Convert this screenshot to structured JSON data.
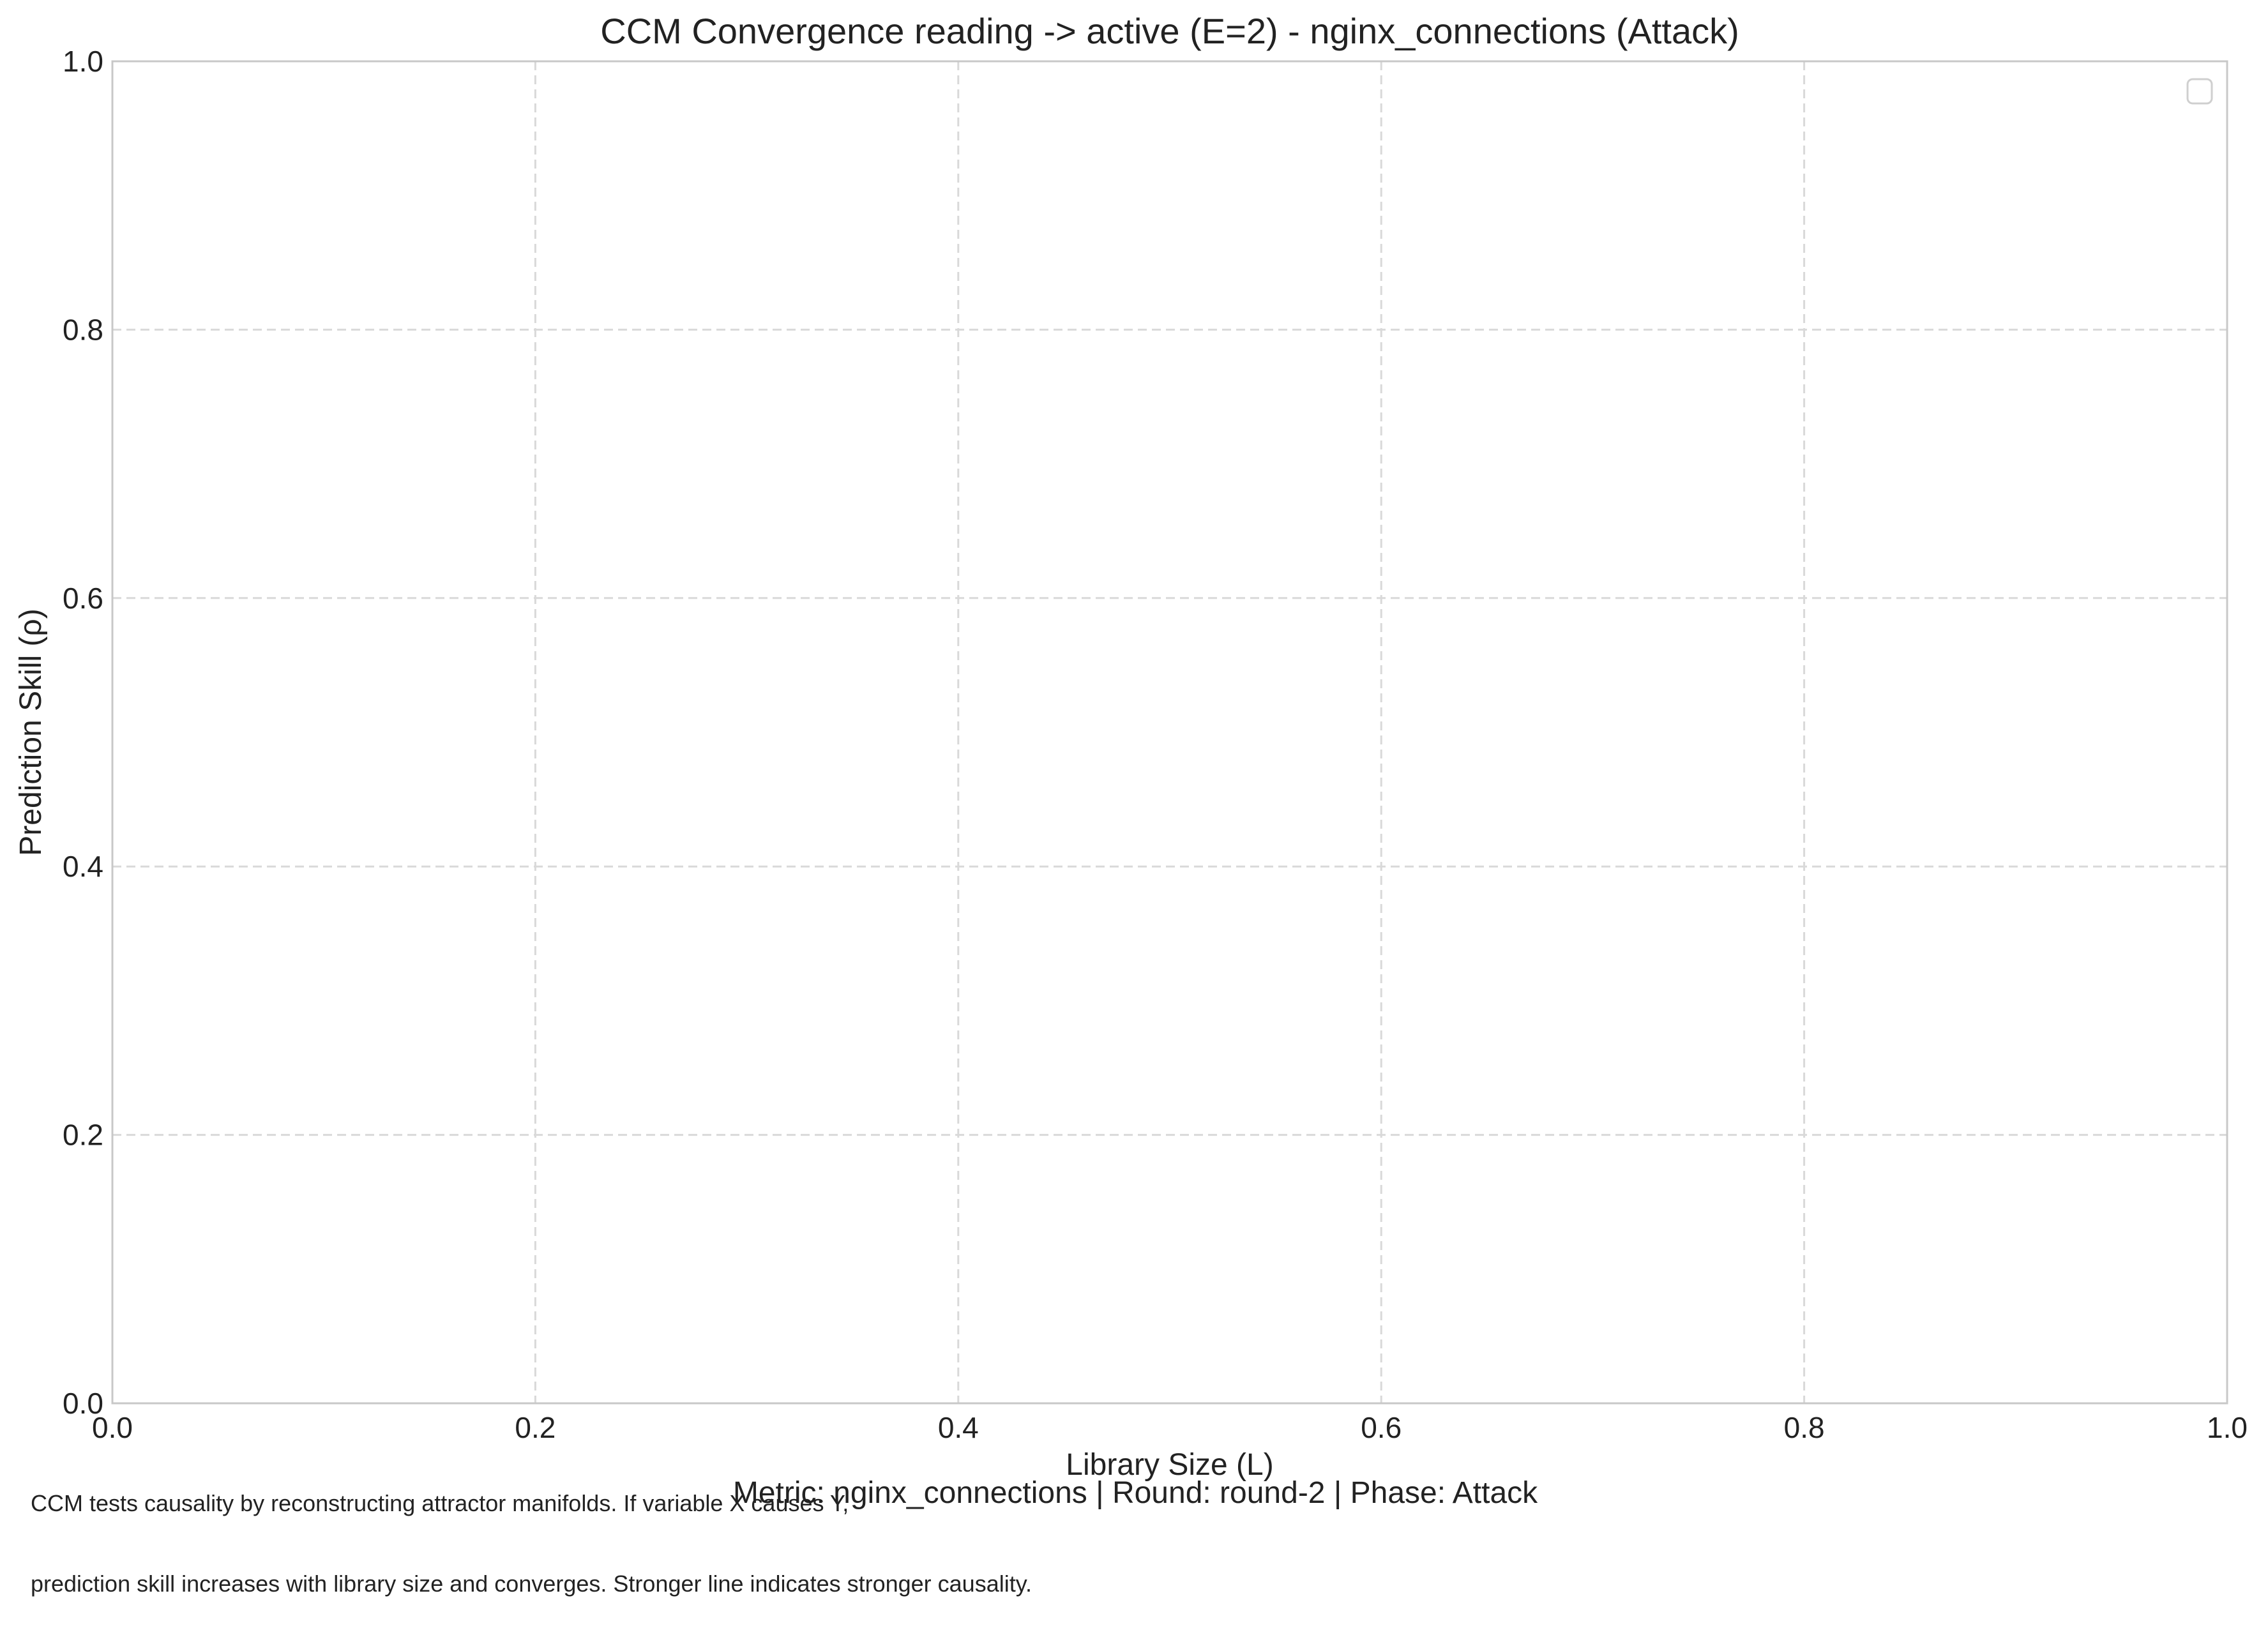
{
  "chart_data": {
    "type": "line",
    "title": "CCM Convergence reading -> active (E=2) - nginx_connections (Attack)",
    "subtitle": "Metric: nginx_connections | Round: round-2 | Phase: Attack",
    "xlabel": "Library Size (L)",
    "ylabel": "Prediction Skill (ρ)",
    "xlim": [
      0.0,
      1.0
    ],
    "ylim": [
      0.0,
      1.0
    ],
    "x_ticks": [
      "0.0",
      "0.2",
      "0.4",
      "0.6",
      "0.8",
      "1.0"
    ],
    "y_ticks": [
      "0.0",
      "0.2",
      "0.4",
      "0.6",
      "0.8",
      "1.0"
    ],
    "grid": true,
    "legend_placement": "top-right",
    "series": [],
    "annotation": [
      "CCM tests causality by reconstructing attractor manifolds. If variable X causes Y,",
      "prediction skill increases with library size and converges. Stronger line indicates stronger causality."
    ],
    "colors": {
      "grid": "#d9d9d9",
      "frame": "#c8c8c8",
      "text": "#222222"
    }
  }
}
